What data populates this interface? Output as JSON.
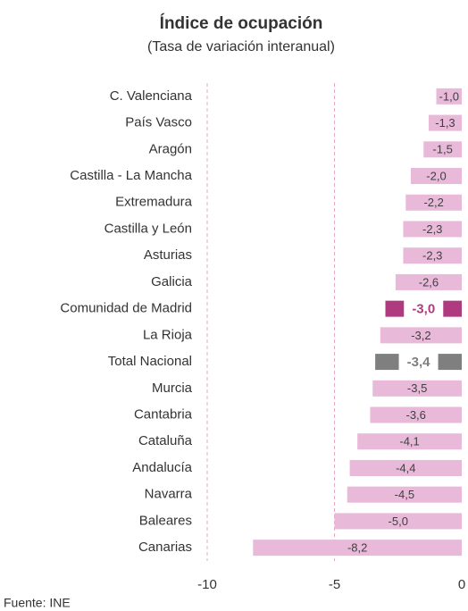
{
  "chart_data": {
    "type": "barh",
    "title": "Índice de ocupación",
    "subtitle": "(Tasa de variación interanual)",
    "source": "Fuente: INE",
    "categories": [
      "C. Valenciana",
      "País Vasco",
      "Aragón",
      "Castilla - La Mancha",
      "Extremadura",
      "Castilla y León",
      "Asturias",
      "Galicia",
      "Comunidad de Madrid",
      "La Rioja",
      "Total Nacional",
      "Murcia",
      "Cantabria",
      "Cataluña",
      "Andalucía",
      "Navarra",
      "Baleares",
      "Canarias"
    ],
    "values": [
      -1.0,
      -1.3,
      -1.5,
      -2.0,
      -2.2,
      -2.3,
      -2.3,
      -2.6,
      -3.0,
      -3.2,
      -3.4,
      -3.5,
      -3.6,
      -4.1,
      -4.4,
      -4.5,
      -5.0,
      -8.2
    ],
    "value_labels": [
      "-1,0",
      "-1,3",
      "-1,5",
      "-2,0",
      "-2,2",
      "-2,3",
      "-2,3",
      "-2,6",
      "-3,0",
      "-3,2",
      "-3,4",
      "-3,5",
      "-3,6",
      "-4,1",
      "-4,4",
      "-4,5",
      "-5,0",
      "-8,2"
    ],
    "color": "#e8b9d8",
    "colors": [
      "#e8b9d8",
      "#e8b9d8",
      "#e8b9d8",
      "#e8b9d8",
      "#e8b9d8",
      "#e8b9d8",
      "#e8b9d8",
      "#e8b9d8",
      "#b03a80",
      "#e8b9d8",
      "#7f7f7f",
      "#e8b9d8",
      "#e8b9d8",
      "#e8b9d8",
      "#e8b9d8",
      "#e8b9d8",
      "#e8b9d8",
      "#e8b9d8"
    ],
    "xlim": [
      -10,
      0
    ],
    "xticks": [
      -10,
      -5,
      0
    ],
    "grid": true
  }
}
